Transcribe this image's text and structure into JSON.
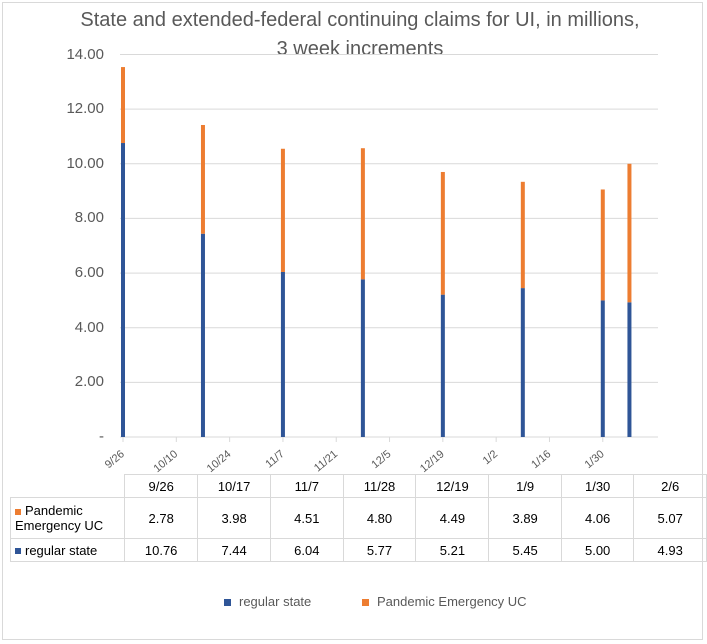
{
  "chart_data": {
    "type": "bar",
    "stacked": true,
    "title": "State and extended-federal continuing claims for UI, in millions, 3 week increments",
    "ylim": [
      0,
      14
    ],
    "y_ticks": [
      "-",
      "2.00",
      "4.00",
      "6.00",
      "8.00",
      "10.00",
      "12.00",
      "14.00"
    ],
    "grid": true,
    "x_axis_labels": [
      "9/26",
      "10/10",
      "10/24",
      "11/7",
      "11/21",
      "12/5",
      "12/19",
      "1/2",
      "1/16",
      "1/30"
    ],
    "categories": [
      "9/26",
      "10/17",
      "11/7",
      "11/28",
      "12/19",
      "1/9",
      "1/30",
      "2/6"
    ],
    "series": [
      {
        "name": "regular state",
        "color": "#2f5597",
        "values": [
          10.76,
          7.44,
          6.04,
          5.77,
          5.21,
          5.45,
          5.0,
          4.93
        ],
        "value_labels": [
          "10.76",
          "7.44",
          "6.04",
          "5.77",
          "5.21",
          "5.45",
          "5.00",
          "4.93"
        ]
      },
      {
        "name": "Pandemic Emergency UC",
        "color": "#ed7d31",
        "values": [
          2.78,
          3.98,
          4.51,
          4.8,
          4.49,
          3.89,
          4.06,
          5.07
        ],
        "value_labels": [
          "2.78",
          "3.98",
          "4.51",
          "4.80",
          "4.49",
          "3.89",
          "4.06",
          "5.07"
        ]
      }
    ],
    "table_rows": [
      {
        "name_lines": [
          "Pandemic",
          "Emergency UC"
        ]
      },
      {
        "name_lines": [
          "regular state"
        ]
      }
    ],
    "legend": {
      "position": "bottom",
      "items": [
        {
          "label": "regular state",
          "color": "#2f5597"
        },
        {
          "label": "Pandemic Emergency UC",
          "color": "#ed7d31"
        }
      ]
    }
  }
}
